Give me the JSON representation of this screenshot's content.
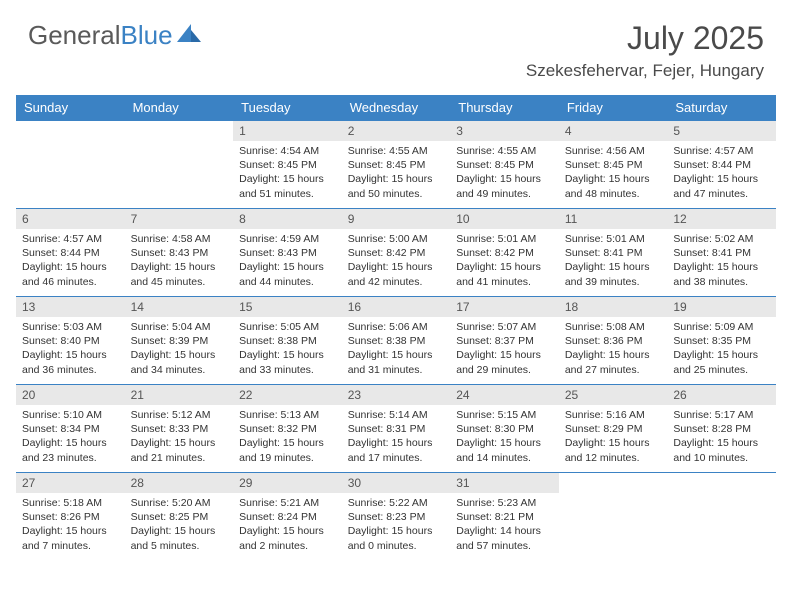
{
  "brand": {
    "general": "General",
    "blue": "Blue"
  },
  "title": "July 2025",
  "location": "Szekesfehervar, Fejer, Hungary",
  "colors": {
    "header_bg": "#3b82c4",
    "header_text": "#ffffff",
    "daynum_bg": "#e8e8e8",
    "body_bg": "#ffffff",
    "text": "#333333",
    "logo_gray": "#5a5a5a",
    "border": "#3b82c4"
  },
  "weekdays": [
    "Sunday",
    "Monday",
    "Tuesday",
    "Wednesday",
    "Thursday",
    "Friday",
    "Saturday"
  ],
  "weeks": [
    [
      null,
      null,
      {
        "n": "1",
        "sr": "4:54 AM",
        "ss": "8:45 PM",
        "dl": "15 hours and 51 minutes."
      },
      {
        "n": "2",
        "sr": "4:55 AM",
        "ss": "8:45 PM",
        "dl": "15 hours and 50 minutes."
      },
      {
        "n": "3",
        "sr": "4:55 AM",
        "ss": "8:45 PM",
        "dl": "15 hours and 49 minutes."
      },
      {
        "n": "4",
        "sr": "4:56 AM",
        "ss": "8:45 PM",
        "dl": "15 hours and 48 minutes."
      },
      {
        "n": "5",
        "sr": "4:57 AM",
        "ss": "8:44 PM",
        "dl": "15 hours and 47 minutes."
      }
    ],
    [
      {
        "n": "6",
        "sr": "4:57 AM",
        "ss": "8:44 PM",
        "dl": "15 hours and 46 minutes."
      },
      {
        "n": "7",
        "sr": "4:58 AM",
        "ss": "8:43 PM",
        "dl": "15 hours and 45 minutes."
      },
      {
        "n": "8",
        "sr": "4:59 AM",
        "ss": "8:43 PM",
        "dl": "15 hours and 44 minutes."
      },
      {
        "n": "9",
        "sr": "5:00 AM",
        "ss": "8:42 PM",
        "dl": "15 hours and 42 minutes."
      },
      {
        "n": "10",
        "sr": "5:01 AM",
        "ss": "8:42 PM",
        "dl": "15 hours and 41 minutes."
      },
      {
        "n": "11",
        "sr": "5:01 AM",
        "ss": "8:41 PM",
        "dl": "15 hours and 39 minutes."
      },
      {
        "n": "12",
        "sr": "5:02 AM",
        "ss": "8:41 PM",
        "dl": "15 hours and 38 minutes."
      }
    ],
    [
      {
        "n": "13",
        "sr": "5:03 AM",
        "ss": "8:40 PM",
        "dl": "15 hours and 36 minutes."
      },
      {
        "n": "14",
        "sr": "5:04 AM",
        "ss": "8:39 PM",
        "dl": "15 hours and 34 minutes."
      },
      {
        "n": "15",
        "sr": "5:05 AM",
        "ss": "8:38 PM",
        "dl": "15 hours and 33 minutes."
      },
      {
        "n": "16",
        "sr": "5:06 AM",
        "ss": "8:38 PM",
        "dl": "15 hours and 31 minutes."
      },
      {
        "n": "17",
        "sr": "5:07 AM",
        "ss": "8:37 PM",
        "dl": "15 hours and 29 minutes."
      },
      {
        "n": "18",
        "sr": "5:08 AM",
        "ss": "8:36 PM",
        "dl": "15 hours and 27 minutes."
      },
      {
        "n": "19",
        "sr": "5:09 AM",
        "ss": "8:35 PM",
        "dl": "15 hours and 25 minutes."
      }
    ],
    [
      {
        "n": "20",
        "sr": "5:10 AM",
        "ss": "8:34 PM",
        "dl": "15 hours and 23 minutes."
      },
      {
        "n": "21",
        "sr": "5:12 AM",
        "ss": "8:33 PM",
        "dl": "15 hours and 21 minutes."
      },
      {
        "n": "22",
        "sr": "5:13 AM",
        "ss": "8:32 PM",
        "dl": "15 hours and 19 minutes."
      },
      {
        "n": "23",
        "sr": "5:14 AM",
        "ss": "8:31 PM",
        "dl": "15 hours and 17 minutes."
      },
      {
        "n": "24",
        "sr": "5:15 AM",
        "ss": "8:30 PM",
        "dl": "15 hours and 14 minutes."
      },
      {
        "n": "25",
        "sr": "5:16 AM",
        "ss": "8:29 PM",
        "dl": "15 hours and 12 minutes."
      },
      {
        "n": "26",
        "sr": "5:17 AM",
        "ss": "8:28 PM",
        "dl": "15 hours and 10 minutes."
      }
    ],
    [
      {
        "n": "27",
        "sr": "5:18 AM",
        "ss": "8:26 PM",
        "dl": "15 hours and 7 minutes."
      },
      {
        "n": "28",
        "sr": "5:20 AM",
        "ss": "8:25 PM",
        "dl": "15 hours and 5 minutes."
      },
      {
        "n": "29",
        "sr": "5:21 AM",
        "ss": "8:24 PM",
        "dl": "15 hours and 2 minutes."
      },
      {
        "n": "30",
        "sr": "5:22 AM",
        "ss": "8:23 PM",
        "dl": "15 hours and 0 minutes."
      },
      {
        "n": "31",
        "sr": "5:23 AM",
        "ss": "8:21 PM",
        "dl": "14 hours and 57 minutes."
      },
      null,
      null
    ]
  ],
  "labels": {
    "sunrise": "Sunrise:",
    "sunset": "Sunset:",
    "daylight": "Daylight:"
  }
}
